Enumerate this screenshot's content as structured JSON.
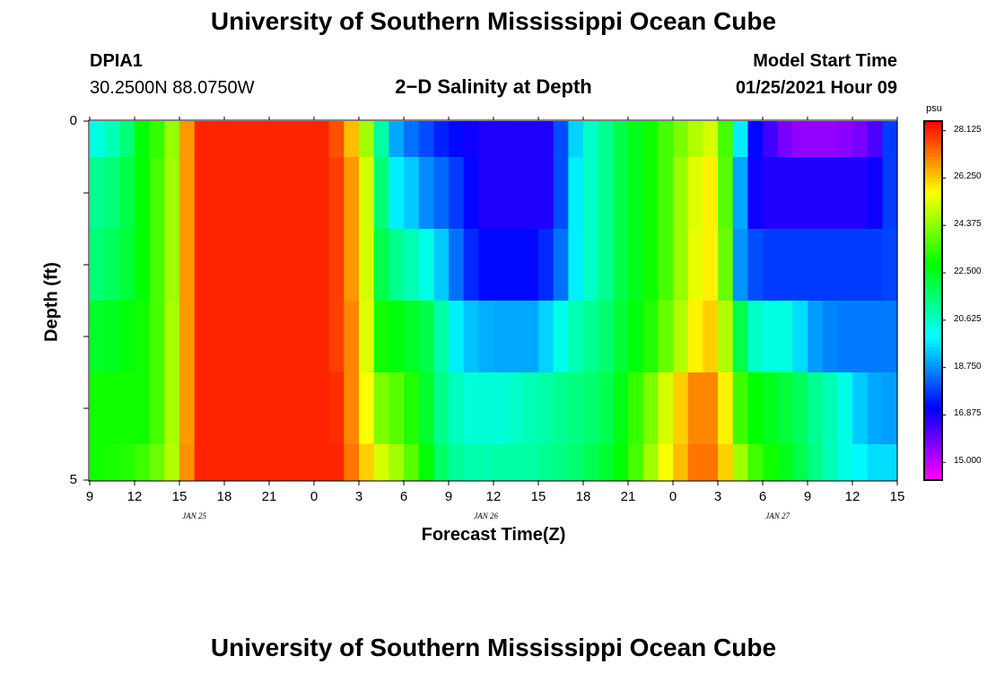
{
  "header": {
    "title_top": "University of Southern Mississippi Ocean Cube",
    "title_bottom": "University of Southern Mississippi Ocean Cube",
    "station": "DPIA1",
    "location": "30.2500N 88.0750W",
    "subtitle": "2−D Salinity at Depth",
    "model_label": "Model Start Time",
    "model_time": "01/25/2021 Hour 09"
  },
  "chart_data": {
    "type": "heatmap",
    "title": "2-D Salinity at Depth",
    "xlabel": "Forecast Time(Z)",
    "ylabel": "Depth (ft)",
    "units": "psu",
    "xlim_hours": [
      0,
      54
    ],
    "ylim": [
      0,
      5
    ],
    "x_ticks": [
      "9",
      "12",
      "15",
      "18",
      "21",
      "0",
      "3",
      "6",
      "9",
      "12",
      "15",
      "18",
      "21",
      "0",
      "3",
      "6",
      "9",
      "12",
      "15"
    ],
    "y_ticks": [
      "0",
      "5"
    ],
    "date_labels": [
      "JAN 25",
      "JAN 26",
      "JAN 27"
    ],
    "date_label_hours": [
      7,
      26.5,
      46
    ],
    "colorbar": {
      "min": 14.3,
      "max": 28.5,
      "ticks": [
        "28.125",
        "26.250",
        "24.375",
        "22.500",
        "20.625",
        "18.750",
        "16.875",
        "15.000"
      ],
      "tick_values": [
        28.125,
        26.25,
        24.375,
        22.5,
        20.625,
        18.75,
        16.875,
        15.0
      ]
    },
    "depth_layers": [
      "0-0.5 ft",
      "0.5-1.5 ft",
      "1.5-2.5 ft",
      "2.5-3.5 ft",
      "3.5-4.5 ft",
      "4.5-5 ft"
    ],
    "time_hours": [
      0,
      1,
      2,
      3,
      4,
      5,
      6,
      7,
      8,
      9,
      10,
      11,
      12,
      13,
      14,
      15,
      16,
      17,
      18,
      19,
      20,
      21,
      22,
      23,
      24,
      25,
      26,
      27,
      28,
      29,
      30,
      31,
      32,
      33,
      34,
      35,
      36,
      37,
      38,
      39,
      40,
      41,
      42,
      43,
      44,
      45,
      46,
      47,
      48,
      49,
      50,
      51,
      52,
      53,
      54
    ],
    "salinity": [
      [
        20.3,
        20.8,
        21.5,
        22.8,
        23.4,
        24.5,
        26.8,
        28.1,
        28.1,
        28.1,
        28.1,
        28.1,
        28.1,
        28.1,
        28.1,
        28.1,
        27.6,
        26.4,
        24.6,
        21.0,
        19.0,
        18.4,
        18.0,
        17.5,
        17.2,
        17.0,
        16.8,
        16.8,
        16.8,
        16.8,
        16.8,
        18.0,
        19.5,
        20.6,
        21.2,
        22.0,
        22.5,
        23.0,
        23.6,
        24.2,
        24.8,
        25.2,
        23.6,
        19.8,
        17.2,
        16.4,
        15.8,
        15.5,
        15.5,
        15.5,
        15.6,
        15.8,
        16.3,
        17.8,
        19.8
      ],
      [
        21.2,
        21.5,
        22.0,
        22.8,
        23.6,
        24.6,
        26.8,
        28.1,
        28.1,
        28.1,
        28.1,
        28.1,
        28.1,
        28.1,
        28.1,
        28.1,
        27.8,
        26.8,
        25.2,
        21.5,
        19.8,
        19.4,
        18.7,
        18.3,
        17.8,
        17.2,
        16.8,
        16.8,
        16.8,
        16.8,
        16.8,
        18.0,
        19.8,
        20.6,
        21.2,
        22.0,
        22.5,
        23.0,
        23.6,
        24.5,
        25.3,
        25.8,
        23.8,
        19.0,
        17.0,
        16.8,
        16.8,
        16.8,
        16.8,
        16.8,
        16.8,
        16.8,
        17.0,
        17.8,
        19.3
      ],
      [
        21.5,
        21.8,
        22.2,
        22.8,
        23.6,
        24.6,
        26.8,
        28.1,
        28.1,
        28.1,
        28.1,
        28.1,
        28.1,
        28.1,
        28.1,
        28.1,
        27.8,
        26.8,
        25.2,
        22.0,
        21.2,
        20.8,
        20.2,
        19.4,
        18.4,
        17.6,
        17.2,
        17.2,
        17.2,
        17.2,
        17.6,
        18.4,
        19.8,
        20.6,
        21.2,
        22.0,
        22.5,
        23.0,
        23.6,
        24.5,
        25.4,
        25.8,
        24.0,
        18.8,
        18.0,
        17.8,
        17.8,
        17.8,
        17.8,
        17.8,
        17.8,
        17.8,
        17.8,
        17.9,
        18.5
      ],
      [
        22.4,
        22.5,
        22.7,
        23.0,
        23.6,
        24.7,
        26.8,
        28.1,
        28.1,
        28.1,
        28.1,
        28.1,
        28.1,
        28.1,
        28.1,
        28.1,
        27.8,
        27.0,
        25.3,
        23.0,
        22.7,
        22.4,
        22.0,
        21.0,
        19.8,
        19.3,
        19.1,
        19.0,
        19.0,
        19.0,
        19.5,
        20.2,
        20.8,
        21.2,
        21.6,
        22.2,
        22.7,
        23.2,
        24.0,
        24.8,
        25.8,
        26.2,
        24.8,
        22.0,
        20.6,
        20.3,
        20.3,
        19.6,
        18.9,
        18.6,
        18.5,
        18.5,
        18.5,
        18.5,
        18.6
      ],
      [
        23.0,
        23.0,
        23.0,
        23.0,
        23.6,
        24.7,
        26.8,
        28.1,
        28.1,
        28.1,
        28.1,
        28.1,
        28.1,
        28.1,
        28.1,
        28.1,
        28.0,
        27.0,
        25.6,
        24.2,
        23.8,
        23.2,
        22.3,
        21.3,
        20.7,
        20.4,
        20.4,
        20.4,
        20.6,
        20.8,
        21.0,
        21.2,
        21.4,
        21.6,
        21.9,
        22.6,
        23.4,
        24.2,
        25.2,
        26.2,
        27.0,
        27.0,
        25.8,
        23.5,
        22.8,
        22.5,
        22.2,
        21.8,
        21.2,
        20.8,
        20.2,
        19.4,
        19.0,
        18.9,
        18.9
      ],
      [
        23.0,
        23.1,
        23.2,
        23.5,
        24.0,
        24.8,
        26.9,
        28.1,
        28.1,
        28.1,
        28.1,
        28.1,
        28.1,
        28.1,
        28.1,
        28.1,
        28.1,
        27.2,
        26.2,
        25.2,
        24.6,
        23.8,
        22.8,
        21.7,
        21.1,
        20.9,
        20.9,
        21.0,
        21.0,
        21.0,
        21.2,
        21.4,
        21.6,
        21.9,
        22.3,
        22.8,
        23.6,
        24.6,
        25.6,
        26.4,
        27.2,
        27.2,
        26.2,
        24.6,
        23.5,
        23.0,
        22.6,
        22.0,
        21.4,
        20.8,
        20.3,
        19.9,
        19.6,
        19.6,
        19.6
      ]
    ]
  }
}
